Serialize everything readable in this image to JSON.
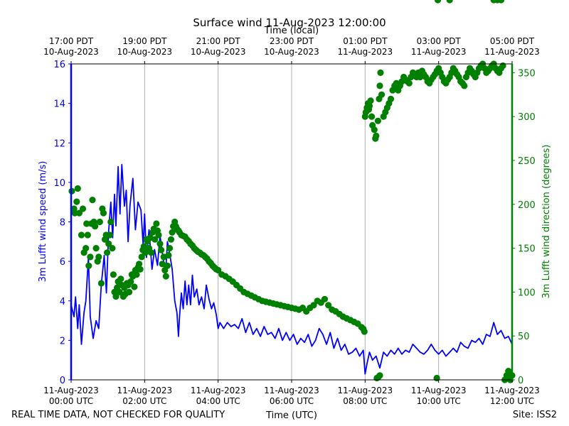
{
  "chart_data": {
    "type": "line",
    "title": "Surface wind 11-Aug-2023 12:00:00",
    "xlabel_bottom": "Time (UTC)",
    "xlabel_top": "Time (local)",
    "ylabel_left": "3m Lufft wind speed (m/s)",
    "ylabel_right": "3m Lufft wind direction (degrees)",
    "footer_left": "REAL TIME DATA, NOT CHECKED FOR QUALITY",
    "footer_right": "Site: ISS2",
    "x_range_hours_utc": [
      0,
      12
    ],
    "ylim_left": [
      0,
      16
    ],
    "ylim_right": [
      0,
      360
    ],
    "grid": "vertical lines at every 2 hours",
    "colors": {
      "speed": "#0000ff",
      "direction": "#008000",
      "grid": "#b0b0b0"
    },
    "bottom_ticks": [
      {
        "hour": 0,
        "line1": "11-Aug-2023",
        "line2": "00:00 UTC"
      },
      {
        "hour": 2,
        "line1": "11-Aug-2023",
        "line2": "02:00 UTC"
      },
      {
        "hour": 4,
        "line1": "11-Aug-2023",
        "line2": "04:00 UTC"
      },
      {
        "hour": 6,
        "line1": "11-Aug-2023",
        "line2": "06:00 UTC"
      },
      {
        "hour": 8,
        "line1": "11-Aug-2023",
        "line2": "08:00 UTC"
      },
      {
        "hour": 10,
        "line1": "11-Aug-2023",
        "line2": "10:00 UTC"
      },
      {
        "hour": 12,
        "line1": "11-Aug-2023",
        "line2": "12:00 UTC"
      }
    ],
    "top_ticks": [
      {
        "hour": 0,
        "line1": "17:00 PDT",
        "line2": "10-Aug-2023"
      },
      {
        "hour": 2,
        "line1": "19:00 PDT",
        "line2": "10-Aug-2023"
      },
      {
        "hour": 4,
        "line1": "21:00 PDT",
        "line2": "10-Aug-2023"
      },
      {
        "hour": 6,
        "line1": "23:00 PDT",
        "line2": "10-Aug-2023"
      },
      {
        "hour": 8,
        "line1": "01:00 PDT",
        "line2": "11-Aug-2023"
      },
      {
        "hour": 10,
        "line1": "03:00 PDT",
        "line2": "11-Aug-2023"
      },
      {
        "hour": 12,
        "line1": "05:00 PDT",
        "line2": "11-Aug-2023"
      }
    ],
    "left_ticks": [
      0,
      2,
      4,
      6,
      8,
      10,
      12,
      14,
      16
    ],
    "right_ticks": [
      0,
      50,
      100,
      150,
      200,
      250,
      300,
      350
    ],
    "series": [
      {
        "name": "3m Lufft wind speed (m/s)",
        "axis": "left",
        "style": "line",
        "x_hours_utc": [
          0.0,
          0.08,
          0.12,
          0.18,
          0.22,
          0.28,
          0.35,
          0.4,
          0.47,
          0.52,
          0.6,
          0.68,
          0.75,
          0.82,
          0.9,
          0.96,
          1.02,
          1.08,
          1.13,
          1.18,
          1.22,
          1.28,
          1.33,
          1.38,
          1.45,
          1.5,
          1.55,
          1.6,
          1.68,
          1.75,
          1.82,
          1.9,
          1.96,
          2.0,
          2.05,
          2.12,
          2.2,
          2.27,
          2.35,
          2.42,
          2.5,
          2.57,
          2.62,
          2.68,
          2.75,
          2.82,
          2.88,
          2.92,
          2.95,
          3.0,
          3.05,
          3.1,
          3.15,
          3.2,
          3.25,
          3.3,
          3.35,
          3.42,
          3.48,
          3.55,
          3.62,
          3.68,
          3.75,
          3.82,
          3.88,
          3.95,
          4.0,
          4.05,
          4.15,
          4.25,
          4.35,
          4.45,
          4.55,
          4.65,
          4.75,
          4.85,
          4.95,
          5.05,
          5.15,
          5.25,
          5.35,
          5.45,
          5.55,
          5.65,
          5.75,
          5.85,
          5.95,
          6.05,
          6.15,
          6.25,
          6.35,
          6.45,
          6.55,
          6.65,
          6.75,
          6.85,
          6.95,
          7.05,
          7.15,
          7.25,
          7.35,
          7.45,
          7.55,
          7.65,
          7.75,
          7.85,
          7.95,
          8.0,
          8.05,
          8.12,
          8.2,
          8.3,
          8.4,
          8.5,
          8.6,
          8.7,
          8.8,
          8.9,
          9.0,
          9.1,
          9.2,
          9.3,
          9.4,
          9.5,
          9.6,
          9.7,
          9.8,
          9.9,
          10.0,
          10.1,
          10.2,
          10.3,
          10.4,
          10.5,
          10.6,
          10.7,
          10.8,
          10.9,
          11.0,
          11.1,
          11.2,
          11.3,
          11.4,
          11.5,
          11.6,
          11.7,
          11.8,
          11.9,
          12.0
        ],
        "values": [
          3.8,
          3.2,
          4.2,
          2.6,
          3.8,
          1.8,
          3.4,
          4.0,
          6.2,
          3.2,
          2.1,
          3.0,
          2.6,
          4.8,
          6.3,
          4.4,
          7.5,
          9.0,
          7.2,
          9.4,
          7.8,
          10.8,
          8.4,
          10.9,
          8.8,
          9.6,
          7.0,
          8.8,
          10.2,
          7.6,
          9.0,
          8.6,
          6.8,
          8.4,
          6.2,
          7.6,
          5.6,
          6.6,
          5.8,
          7.3,
          6.2,
          5.4,
          7.0,
          6.4,
          5.6,
          4.0,
          3.4,
          2.2,
          3.2,
          4.4,
          3.6,
          5.0,
          3.8,
          4.8,
          3.8,
          5.3,
          4.2,
          4.6,
          3.8,
          4.2,
          3.6,
          4.8,
          4.1,
          3.6,
          3.9,
          3.3,
          2.6,
          2.9,
          2.6,
          2.9,
          2.7,
          2.8,
          2.6,
          3.1,
          2.4,
          2.9,
          2.3,
          2.6,
          2.2,
          2.7,
          2.3,
          2.4,
          2.1,
          2.6,
          2.0,
          2.4,
          2.0,
          2.3,
          1.8,
          2.1,
          1.9,
          2.3,
          1.7,
          2.0,
          2.6,
          2.3,
          1.8,
          2.4,
          1.6,
          2.1,
          1.5,
          1.8,
          1.3,
          1.4,
          1.6,
          1.2,
          1.5,
          0.3,
          0.8,
          1.4,
          1.0,
          1.2,
          0.6,
          1.4,
          1.2,
          1.5,
          1.3,
          1.6,
          1.3,
          1.5,
          1.4,
          1.8,
          1.6,
          1.4,
          1.3,
          1.5,
          1.8,
          1.5,
          1.3,
          1.5,
          1.2,
          1.4,
          1.6,
          1.4,
          1.9,
          1.7,
          1.6,
          2.0,
          1.9,
          2.1,
          1.8,
          2.3,
          2.2,
          2.9,
          2.3,
          2.5,
          2.1,
          2.2,
          1.8,
          2.2,
          2.2
        ]
      },
      {
        "name": "3m Lufft wind direction (degrees)",
        "axis": "right",
        "style": "scatter",
        "x_hours_utc": [
          0.02,
          0.08,
          0.1,
          0.15,
          0.18,
          0.22,
          0.28,
          0.32,
          0.35,
          0.4,
          0.42,
          0.45,
          0.48,
          0.52,
          0.55,
          0.58,
          0.62,
          0.65,
          0.68,
          0.72,
          0.75,
          0.78,
          0.82,
          0.85,
          0.88,
          0.92,
          0.95,
          0.98,
          1.02,
          1.05,
          1.08,
          1.12,
          1.15,
          1.18,
          1.22,
          1.25,
          1.28,
          1.32,
          1.35,
          1.38,
          1.42,
          1.45,
          1.48,
          1.52,
          1.55,
          1.58,
          1.62,
          1.65,
          1.68,
          1.72,
          1.75,
          1.78,
          1.82,
          1.85,
          1.88,
          1.92,
          1.95,
          1.98,
          2.02,
          2.05,
          2.08,
          2.12,
          2.15,
          2.18,
          2.22,
          2.25,
          2.28,
          2.32,
          2.35,
          2.38,
          2.42,
          2.45,
          2.48,
          2.52,
          2.55,
          2.58,
          2.62,
          2.65,
          2.68,
          2.72,
          2.75,
          2.78,
          2.82,
          2.85,
          2.88,
          2.92,
          2.95,
          3.0,
          3.05,
          3.1,
          3.15,
          3.2,
          3.25,
          3.3,
          3.35,
          3.4,
          3.45,
          3.5,
          3.55,
          3.6,
          3.65,
          3.7,
          3.75,
          3.8,
          3.85,
          3.9,
          3.95,
          4.0,
          4.1,
          4.2,
          4.3,
          4.4,
          4.5,
          4.6,
          4.7,
          4.8,
          4.9,
          5.0,
          5.1,
          5.2,
          5.3,
          5.4,
          5.5,
          5.6,
          5.7,
          5.8,
          5.9,
          6.0,
          6.1,
          6.2,
          6.3,
          6.4,
          6.5,
          6.6,
          6.7,
          6.8,
          6.9,
          7.0,
          7.1,
          7.2,
          7.3,
          7.4,
          7.5,
          7.6,
          7.7,
          7.8,
          7.9,
          7.95,
          7.98,
          8.0,
          8.02,
          8.05,
          8.08,
          8.1,
          8.12,
          8.15,
          8.18,
          8.2,
          8.25,
          8.28,
          8.3,
          8.35,
          8.38,
          8.4,
          8.42,
          8.45,
          8.5,
          8.55,
          8.6,
          8.65,
          8.7,
          8.75,
          8.8,
          8.85,
          8.9,
          8.95,
          9.0,
          9.05,
          9.1,
          9.15,
          9.2,
          9.25,
          9.3,
          9.35,
          9.4,
          9.45,
          9.5,
          9.55,
          9.6,
          9.65,
          9.7,
          9.75,
          9.8,
          9.85,
          9.9,
          9.95,
          10.0,
          10.05,
          10.1,
          10.15,
          10.2,
          10.25,
          10.3,
          10.35,
          10.4,
          10.45,
          10.5,
          10.55,
          10.6,
          10.65,
          10.7,
          10.75,
          10.8,
          10.85,
          10.9,
          10.95,
          11.0,
          11.05,
          11.1,
          11.15,
          11.2,
          11.25,
          11.3,
          11.35,
          11.4,
          11.45,
          11.5,
          11.55,
          11.6,
          11.65,
          11.7,
          11.75,
          11.8,
          11.85,
          11.9,
          11.95,
          12.0,
          8.32,
          8.36,
          8.4,
          9.95,
          9.98,
          10.3,
          11.5,
          11.6,
          11.7
        ],
        "values": [
          215,
          195,
          190,
          203,
          218,
          190,
          165,
          195,
          145,
          150,
          178,
          165,
          130,
          140,
          178,
          205,
          180,
          175,
          150,
          135,
          140,
          180,
          110,
          195,
          190,
          160,
          165,
          145,
          155,
          165,
          180,
          150,
          120,
          100,
          95,
          105,
          112,
          100,
          115,
          108,
          95,
          105,
          98,
          110,
          108,
          100,
          112,
          120,
          118,
          106,
          125,
          120,
          128,
          132,
          126,
          140,
          148,
          152,
          145,
          160,
          158,
          150,
          162,
          145,
          168,
          172,
          160,
          178,
          170,
          165,
          155,
          148,
          132,
          140,
          125,
          118,
          130,
          142,
          150,
          160,
          168,
          175,
          180,
          175,
          172,
          170,
          168,
          165,
          164,
          163,
          160,
          158,
          155,
          153,
          150,
          148,
          146,
          145,
          143,
          142,
          140,
          138,
          135,
          133,
          130,
          128,
          126,
          125,
          120,
          118,
          115,
          112,
          108,
          104,
          100,
          98,
          96,
          94,
          92,
          90,
          89,
          88,
          87,
          86,
          85,
          84,
          83,
          82,
          81,
          80,
          82,
          78,
          82,
          85,
          90,
          88,
          92,
          85,
          80,
          78,
          75,
          72,
          70,
          68,
          66,
          64,
          60,
          58,
          55,
          300,
          305,
          310,
          315,
          308,
          312,
          318,
          300,
          290,
          285,
          275,
          278,
          295,
          320,
          335,
          350,
          325,
          300,
          305,
          310,
          315,
          320,
          330,
          335,
          338,
          330,
          335,
          340,
          345,
          342,
          340,
          338,
          345,
          350,
          348,
          345,
          350,
          345,
          352,
          348,
          345,
          340,
          338,
          342,
          345,
          348,
          352,
          355,
          350,
          345,
          340,
          338,
          342,
          345,
          350,
          355,
          352,
          348,
          345,
          340,
          338,
          335,
          345,
          350,
          355,
          352,
          348,
          345,
          350,
          355,
          358,
          360,
          355,
          350,
          352,
          355,
          358,
          360,
          355,
          352,
          350,
          355,
          358,
          0,
          5,
          10,
          0,
          5,
          2,
          3,
          5,
          2
        ]
      }
    ]
  }
}
